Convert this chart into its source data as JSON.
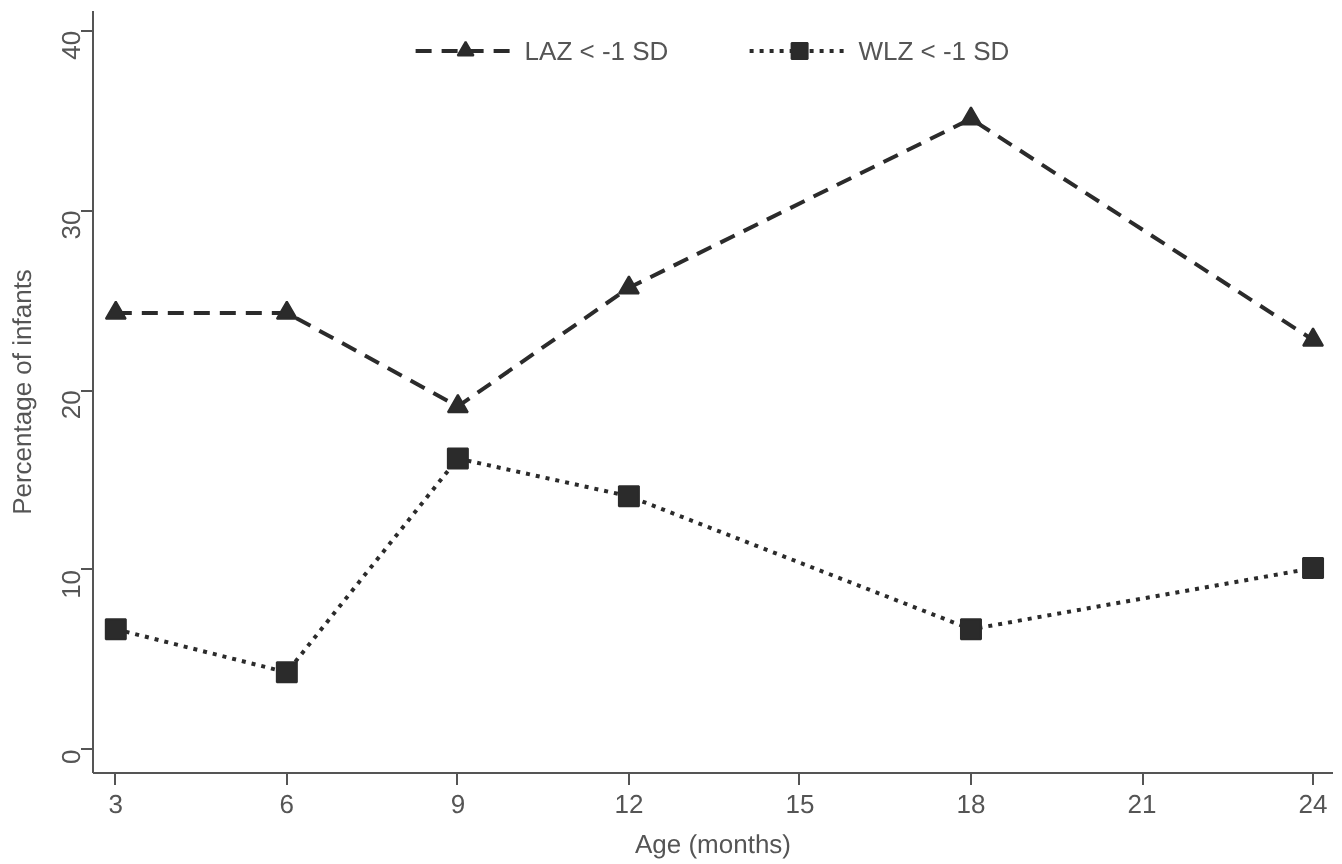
{
  "chart_data": {
    "type": "line",
    "xlabel": "Age (months)",
    "ylabel": "Percentage of infants",
    "x": [
      3,
      6,
      9,
      12,
      18,
      24
    ],
    "series": [
      {
        "name": "LAZ < -1 SD",
        "color": "#2b2b2b",
        "values": [
          24.3,
          24.3,
          19.1,
          25.7,
          35.1,
          22.8
        ],
        "marker": "triangle",
        "line_style": "dashed"
      },
      {
        "name": "WLZ < -1 SD",
        "color": "#2b2b2b",
        "values": [
          6.7,
          4.3,
          16.2,
          14.1,
          6.7,
          10.1
        ],
        "marker": "square",
        "line_style": "dotted"
      }
    ],
    "xlim": [
      2.6,
      24.35
    ],
    "ylim": [
      -1.3,
      41.1
    ],
    "xticks": [
      3,
      6,
      9,
      12,
      15,
      18,
      21,
      24
    ],
    "yticks": [
      0,
      10,
      20,
      30,
      40
    ],
    "grid": false,
    "legend": "top"
  }
}
